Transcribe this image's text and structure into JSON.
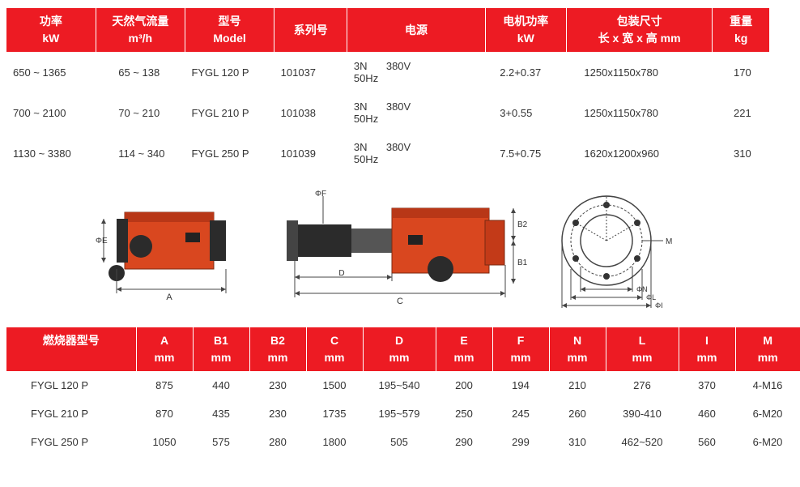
{
  "colors": {
    "header_bg": "#ed1b23",
    "header_fg": "#ffffff",
    "body_bg": "#ffffff",
    "text": "#333333",
    "burner_body": "#d9471f",
    "burner_dark": "#2b2b2b",
    "diagram_line": "#444444"
  },
  "table1": {
    "headers": [
      {
        "l1": "功率",
        "l2": "kW"
      },
      {
        "l1": "天然气流量",
        "l2": "m³/h"
      },
      {
        "l1": "型号",
        "l2": "Model"
      },
      {
        "l1": "系列号",
        "l2": ""
      },
      {
        "l1": "电源",
        "l2": ""
      },
      {
        "l1": "电机功率",
        "l2": "kW"
      },
      {
        "l1": "包装尺寸",
        "l2": "长 x 宽 x 高  mm"
      },
      {
        "l1": "重量",
        "l2": "kg"
      }
    ],
    "col_widths": [
      "110",
      "110",
      "110",
      "90",
      "170",
      "100",
      "180",
      "70"
    ],
    "rows": [
      {
        "power": "650 ~ 1365",
        "gas": "65 ~ 138",
        "model": "FYGL 120 P",
        "series": "101037",
        "ps_phase": "3N",
        "ps_volt": "380V",
        "ps_freq": "50Hz",
        "motor": "2.2+0.37",
        "pack": "1250x1150x780",
        "weight": "170"
      },
      {
        "power": "700 ~ 2100",
        "gas": "70 ~ 210",
        "model": "FYGL 210 P",
        "series": "101038",
        "ps_phase": "3N",
        "ps_volt": "380V",
        "ps_freq": "50Hz",
        "motor": "3+0.55",
        "pack": "1250x1150x780",
        "weight": "221"
      },
      {
        "power": "1130 ~ 3380",
        "gas": "114 ~ 340",
        "model": "FYGL 250 P",
        "series": "101039",
        "ps_phase": "3N",
        "ps_volt": "380V",
        "ps_freq": "50Hz",
        "motor": "7.5+0.75",
        "pack": "1620x1200x960",
        "weight": "310"
      }
    ]
  },
  "diagram": {
    "labels_side": [
      "ΦE",
      "A"
    ],
    "labels_front": [
      "ΦF",
      "D",
      "C",
      "B2",
      "B1"
    ],
    "labels_flange": [
      "M",
      "ΦN",
      "ΦL",
      "ΦI"
    ]
  },
  "table2": {
    "headers": [
      {
        "l1": "燃烧器型号",
        "l2": ""
      },
      {
        "l1": "A",
        "l2": "mm"
      },
      {
        "l1": "B1",
        "l2": "mm"
      },
      {
        "l1": "B2",
        "l2": "mm"
      },
      {
        "l1": "C",
        "l2": "mm"
      },
      {
        "l1": "D",
        "l2": "mm"
      },
      {
        "l1": "E",
        "l2": "mm"
      },
      {
        "l1": "F",
        "l2": "mm"
      },
      {
        "l1": "N",
        "l2": "mm"
      },
      {
        "l1": "L",
        "l2": "mm"
      },
      {
        "l1": "I",
        "l2": "mm"
      },
      {
        "l1": "M",
        "l2": "mm"
      }
    ],
    "col_widths": [
      "160",
      "70",
      "70",
      "70",
      "70",
      "90",
      "70",
      "70",
      "70",
      "90",
      "70",
      "80"
    ],
    "rows": [
      {
        "model": "FYGL 120 P",
        "A": "875",
        "B1": "440",
        "B2": "230",
        "C": "1500",
        "D": "195~540",
        "E": "200",
        "F": "194",
        "N": "210",
        "L": "276",
        "I": "370",
        "M": "4-M16"
      },
      {
        "model": "FYGL 210 P",
        "A": "870",
        "B1": "435",
        "B2": "230",
        "C": "1735",
        "D": "195~579",
        "E": "250",
        "F": "245",
        "N": "260",
        "L": "390-410",
        "I": "460",
        "M": "6-M20"
      },
      {
        "model": "FYGL 250 P",
        "A": "1050",
        "B1": "575",
        "B2": "280",
        "C": "1800",
        "D": "505",
        "E": "290",
        "F": "299",
        "N": "310",
        "L": "462~520",
        "I": "560",
        "M": "6-M20"
      }
    ]
  }
}
